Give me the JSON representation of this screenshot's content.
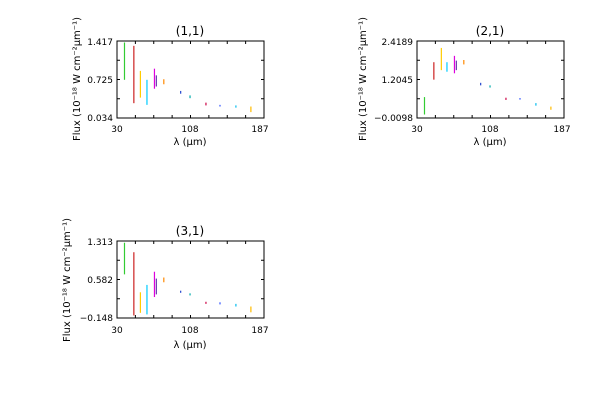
{
  "chart_data": [
    {
      "type": "line",
      "title": "(1,1)",
      "xlabel": "λ (μm)",
      "ylabel": "Flux (10⁻¹⁸ W cm⁻²μm⁻¹)",
      "xticks": [
        "30",
        "108",
        "187"
      ],
      "yticks": [
        "0.034",
        "0.725",
        "1.417"
      ],
      "xlim": [
        30,
        187
      ],
      "ylim": [
        0.034,
        1.417
      ],
      "segments": [
        {
          "x": 38,
          "y1": 0.72,
          "y2": 1.39,
          "color": "#33cc33"
        },
        {
          "x": 48,
          "y1": 0.3,
          "y2": 1.33,
          "color": "#cc2222"
        },
        {
          "x": 55,
          "y1": 0.4,
          "y2": 0.88,
          "color": "#ffcc00"
        },
        {
          "x": 62,
          "y1": 0.27,
          "y2": 0.72,
          "color": "#00ccff"
        },
        {
          "x": 70,
          "y1": 0.56,
          "y2": 0.92,
          "color": "#dd00dd"
        },
        {
          "x": 72,
          "y1": 0.6,
          "y2": 0.8,
          "color": "#6633aa"
        },
        {
          "x": 80,
          "y1": 0.64,
          "y2": 0.73,
          "color": "#ff8800"
        },
        {
          "x": 98,
          "y1": 0.47,
          "y2": 0.52,
          "color": "#2244cc"
        },
        {
          "x": 108,
          "y1": 0.39,
          "y2": 0.44,
          "color": "#00aaaa"
        },
        {
          "x": 125,
          "y1": 0.26,
          "y2": 0.31,
          "color": "#cc0044"
        },
        {
          "x": 140,
          "y1": 0.24,
          "y2": 0.27,
          "color": "#3355ff"
        },
        {
          "x": 157,
          "y1": 0.22,
          "y2": 0.26,
          "color": "#00bbee"
        },
        {
          "x": 173,
          "y1": 0.14,
          "y2": 0.24,
          "color": "#ffbb00"
        }
      ]
    },
    {
      "type": "line",
      "title": "(2,1)",
      "xlabel": "λ (μm)",
      "ylabel": "Flux (10⁻¹⁸ W cm⁻²μm⁻¹)",
      "xticks": [
        "30",
        "108",
        "187"
      ],
      "yticks": [
        "−0.0098",
        "1.2045",
        "2.4189"
      ],
      "xlim": [
        30,
        187
      ],
      "ylim": [
        -0.0098,
        2.4189
      ],
      "segments": [
        {
          "x": 38,
          "y1": 0.1,
          "y2": 0.65,
          "color": "#33cc33"
        },
        {
          "x": 48,
          "y1": 1.2,
          "y2": 1.75,
          "color": "#cc2222"
        },
        {
          "x": 56,
          "y1": 1.5,
          "y2": 2.2,
          "color": "#ffcc00"
        },
        {
          "x": 62,
          "y1": 1.45,
          "y2": 1.75,
          "color": "#00ccff"
        },
        {
          "x": 70,
          "y1": 1.4,
          "y2": 1.95,
          "color": "#dd00dd"
        },
        {
          "x": 72,
          "y1": 1.5,
          "y2": 1.8,
          "color": "#6633aa"
        },
        {
          "x": 80,
          "y1": 1.68,
          "y2": 1.82,
          "color": "#ff8800"
        },
        {
          "x": 98,
          "y1": 1.02,
          "y2": 1.1,
          "color": "#2244cc"
        },
        {
          "x": 108,
          "y1": 0.95,
          "y2": 1.02,
          "color": "#00aaaa"
        },
        {
          "x": 125,
          "y1": 0.56,
          "y2": 0.63,
          "color": "#cc0044"
        },
        {
          "x": 140,
          "y1": 0.57,
          "y2": 0.62,
          "color": "#3355ff"
        },
        {
          "x": 157,
          "y1": 0.38,
          "y2": 0.46,
          "color": "#00bbee"
        },
        {
          "x": 173,
          "y1": 0.25,
          "y2": 0.35,
          "color": "#ffbb00"
        }
      ]
    },
    {
      "type": "line",
      "title": "(3,1)",
      "xlabel": "λ (μm)",
      "ylabel": "Flux (10⁻¹⁸ W cm⁻²μm⁻¹)",
      "xticks": [
        "30",
        "108",
        "187"
      ],
      "yticks": [
        "−0.148",
        "0.582",
        "1.313"
      ],
      "xlim": [
        30,
        187
      ],
      "ylim": [
        -0.148,
        1.313
      ],
      "segments": [
        {
          "x": 38,
          "y1": 0.68,
          "y2": 1.28,
          "color": "#33cc33"
        },
        {
          "x": 48,
          "y1": -0.1,
          "y2": 1.1,
          "color": "#cc2222"
        },
        {
          "x": 55,
          "y1": -0.05,
          "y2": 0.34,
          "color": "#ffcc00"
        },
        {
          "x": 62,
          "y1": -0.08,
          "y2": 0.48,
          "color": "#00ccff"
        },
        {
          "x": 70,
          "y1": 0.25,
          "y2": 0.73,
          "color": "#dd00dd"
        },
        {
          "x": 72,
          "y1": 0.3,
          "y2": 0.6,
          "color": "#6633aa"
        },
        {
          "x": 80,
          "y1": 0.53,
          "y2": 0.62,
          "color": "#ff8800"
        },
        {
          "x": 98,
          "y1": 0.33,
          "y2": 0.37,
          "color": "#2244cc"
        },
        {
          "x": 108,
          "y1": 0.28,
          "y2": 0.32,
          "color": "#00aaaa"
        },
        {
          "x": 125,
          "y1": 0.12,
          "y2": 0.16,
          "color": "#cc0044"
        },
        {
          "x": 140,
          "y1": 0.11,
          "y2": 0.15,
          "color": "#3355ff"
        },
        {
          "x": 157,
          "y1": 0.07,
          "y2": 0.12,
          "color": "#00bbee"
        },
        {
          "x": 173,
          "y1": -0.04,
          "y2": 0.07,
          "color": "#ffbb00"
        }
      ]
    }
  ]
}
